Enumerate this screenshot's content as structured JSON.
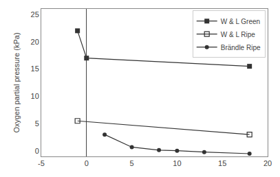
{
  "chart_data": {
    "type": "line",
    "ylabel": "Oxygen partial pressure (kPa)",
    "xlim": [
      -5,
      20
    ],
    "ylim": [
      -1,
      26
    ],
    "xticks": [
      -5,
      0,
      5,
      10,
      15,
      20
    ],
    "yticks": [
      0,
      5,
      10,
      15,
      20,
      25
    ],
    "grid": false,
    "legend": "upper right",
    "series": [
      {
        "name": "W & L Green",
        "x": [
          -1,
          0,
          18
        ],
        "values": [
          22,
          17,
          15.5
        ],
        "color": "#333333",
        "marker": "square"
      },
      {
        "name": "W & L Ripe",
        "x": [
          -1,
          18
        ],
        "values": [
          5.5,
          3.0
        ],
        "color": "#333333",
        "marker": "square-open"
      },
      {
        "name": "Brändle Ripe",
        "x": [
          2,
          5,
          8,
          10,
          13,
          18
        ],
        "values": [
          3.0,
          0.7,
          0.15,
          0.05,
          -0.2,
          -0.5
        ],
        "color": "#333333",
        "marker": "circle"
      }
    ]
  }
}
